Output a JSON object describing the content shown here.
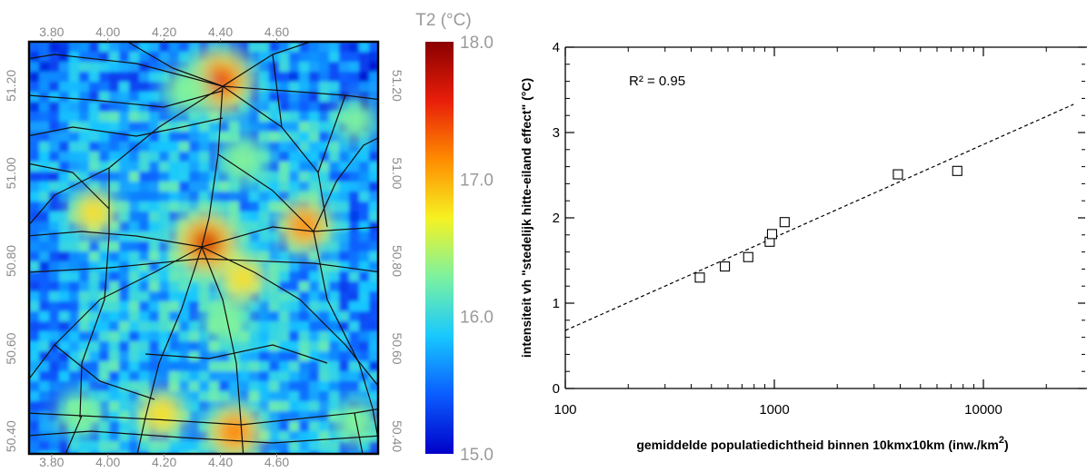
{
  "chart_data": [
    {
      "type": "heatmap",
      "title": "",
      "colorbar": {
        "label": "T2 (°C)",
        "ticks": [
          "18.0",
          "17.0",
          "16.0",
          "15.0"
        ],
        "range": [
          15.0,
          18.0
        ],
        "colormap": [
          "#0000c8",
          "#0a5cff",
          "#18c8ff",
          "#7cf2a0",
          "#f6f222",
          "#ff8c00",
          "#e81e0a",
          "#8a0000"
        ]
      },
      "x_ticks_top": [
        "3.80",
        "4.00",
        "4.20",
        "4.40",
        "4.60"
      ],
      "x_ticks_bottom": [
        "3.80",
        "4.00",
        "4.20",
        "4.40",
        "4.60"
      ],
      "y_ticks_left": [
        "51.20",
        "51.00",
        "50.80",
        "50.60",
        "50.40"
      ],
      "y_ticks_right": [
        "51.20",
        "51.00",
        "50.80",
        "50.60",
        "50.40"
      ],
      "xlim": [
        3.72,
        4.96
      ],
      "ylim": [
        50.36,
        51.3
      ],
      "hotspots": [
        {
          "lon": 4.4,
          "lat": 51.21,
          "t": 17.9
        },
        {
          "lon": 4.35,
          "lat": 50.84,
          "t": 18.0
        },
        {
          "lon": 4.45,
          "lat": 50.41,
          "t": 17.4
        },
        {
          "lon": 4.7,
          "lat": 50.88,
          "t": 17.2
        },
        {
          "lon": 4.19,
          "lat": 50.45,
          "t": 16.9
        },
        {
          "lon": 4.48,
          "lat": 50.76,
          "t": 16.8
        },
        {
          "lon": 3.95,
          "lat": 50.91,
          "t": 16.8
        },
        {
          "lon": 4.48,
          "lat": 51.03,
          "t": 16.7
        },
        {
          "lon": 3.9,
          "lat": 50.45,
          "t": 16.6
        },
        {
          "lon": 4.88,
          "lat": 50.43,
          "t": 16.6
        },
        {
          "lon": 4.42,
          "lat": 50.66,
          "t": 16.6
        },
        {
          "lon": 4.28,
          "lat": 51.19,
          "t": 16.7
        },
        {
          "lon": 4.88,
          "lat": 51.12,
          "t": 16.4
        }
      ]
    },
    {
      "type": "scatter",
      "title": "",
      "xlabel": "gemiddelde populatiedichtheid binnen 10kmx10km (inw./km",
      "xlabel_superscript": "2",
      "xlabel_close": ")",
      "ylabel": "intensiteit vh \"stedelijk hitte-eiland effect\" (°C)",
      "x_scale": "log",
      "xlim": [
        100,
        27000
      ],
      "ylim": [
        0,
        4
      ],
      "x_tick_labels": [
        "100",
        "1000",
        "10000"
      ],
      "y_tick_labels": [
        "0",
        "1",
        "2",
        "3",
        "4"
      ],
      "annotation": "R² = 0.95",
      "points": [
        {
          "x": 440,
          "y": 1.3
        },
        {
          "x": 580,
          "y": 1.43
        },
        {
          "x": 750,
          "y": 1.54
        },
        {
          "x": 950,
          "y": 1.72
        },
        {
          "x": 975,
          "y": 1.81
        },
        {
          "x": 1120,
          "y": 1.95
        },
        {
          "x": 3900,
          "y": 2.51
        },
        {
          "x": 7500,
          "y": 2.55
        }
      ],
      "fit_line": {
        "x": [
          100,
          27000
        ],
        "y": [
          0.68,
          3.33
        ],
        "style": "dashed"
      }
    }
  ]
}
